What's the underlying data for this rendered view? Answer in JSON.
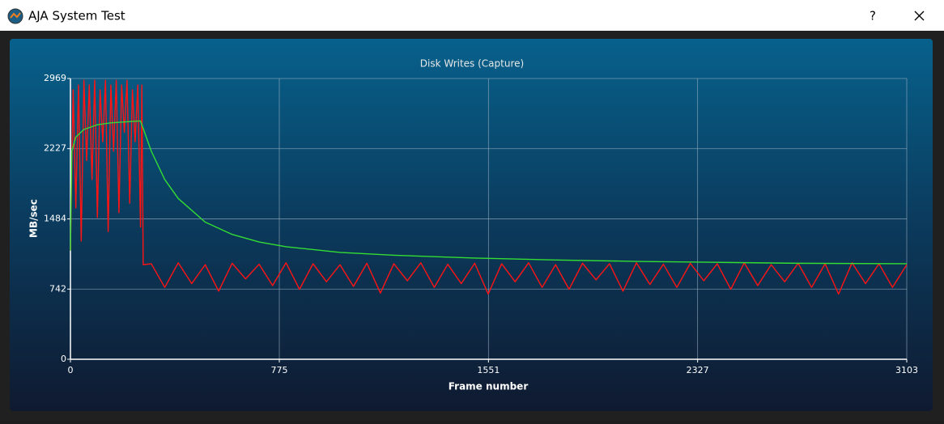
{
  "window": {
    "title": "AJA System Test",
    "help_button": "?"
  },
  "chart_data": {
    "type": "line",
    "title": "Disk Writes (Capture)",
    "x_label": "Frame number",
    "y_label": "MB/sec",
    "xlim": [
      0,
      3103
    ],
    "xticks": [
      0,
      775,
      1551,
      2327,
      3103
    ],
    "ylim": [
      0,
      2969
    ],
    "yticks": [
      0,
      742,
      1484,
      2227,
      2969
    ],
    "grid": true,
    "series": [
      {
        "color": "#ff1414",
        "x": [
          0,
          10,
          20,
          30,
          40,
          50,
          60,
          70,
          80,
          90,
          100,
          110,
          120,
          130,
          140,
          150,
          160,
          170,
          180,
          190,
          200,
          210,
          220,
          230,
          240,
          250,
          260,
          265,
          270,
          300,
          350,
          400,
          450,
          500,
          550,
          600,
          650,
          700,
          750,
          800,
          850,
          900,
          950,
          1000,
          1050,
          1100,
          1150,
          1200,
          1250,
          1300,
          1350,
          1400,
          1450,
          1500,
          1550,
          1600,
          1650,
          1700,
          1750,
          1800,
          1850,
          1900,
          1950,
          2000,
          2050,
          2100,
          2150,
          2200,
          2250,
          2300,
          2350,
          2400,
          2450,
          2500,
          2550,
          2600,
          2650,
          2700,
          2750,
          2800,
          2850,
          2900,
          2950,
          3000,
          3050,
          3103
        ],
        "values": [
          1150,
          2850,
          1600,
          2900,
          1250,
          2950,
          2100,
          2900,
          1900,
          2950,
          1500,
          2850,
          2300,
          2950,
          1350,
          2900,
          2200,
          2950,
          1550,
          2900,
          2400,
          2950,
          1650,
          2850,
          2300,
          2900,
          1400,
          2900,
          1000,
          1010,
          760,
          1020,
          800,
          1000,
          720,
          1015,
          850,
          1005,
          780,
          1020,
          740,
          1010,
          820,
          1000,
          770,
          1015,
          700,
          1010,
          830,
          1020,
          760,
          1005,
          800,
          1015,
          690,
          1010,
          820,
          1020,
          760,
          1000,
          740,
          1015,
          840,
          1010,
          720,
          1020,
          790,
          1005,
          760,
          1015,
          830,
          1010,
          740,
          1020,
          780,
          1000,
          820,
          1015,
          760,
          1010,
          690,
          1020,
          800,
          1010,
          760,
          1000
        ]
      },
      {
        "color": "#33dd33",
        "x": [
          0,
          5,
          20,
          50,
          100,
          150,
          200,
          260,
          300,
          350,
          400,
          500,
          600,
          700,
          800,
          1000,
          1200,
          1500,
          1800,
          2100,
          2400,
          2700,
          3103
        ],
        "values": [
          1150,
          2200,
          2350,
          2430,
          2480,
          2500,
          2510,
          2520,
          2200,
          1900,
          1700,
          1450,
          1320,
          1240,
          1190,
          1130,
          1100,
          1070,
          1050,
          1035,
          1025,
          1015,
          1010
        ]
      }
    ]
  }
}
